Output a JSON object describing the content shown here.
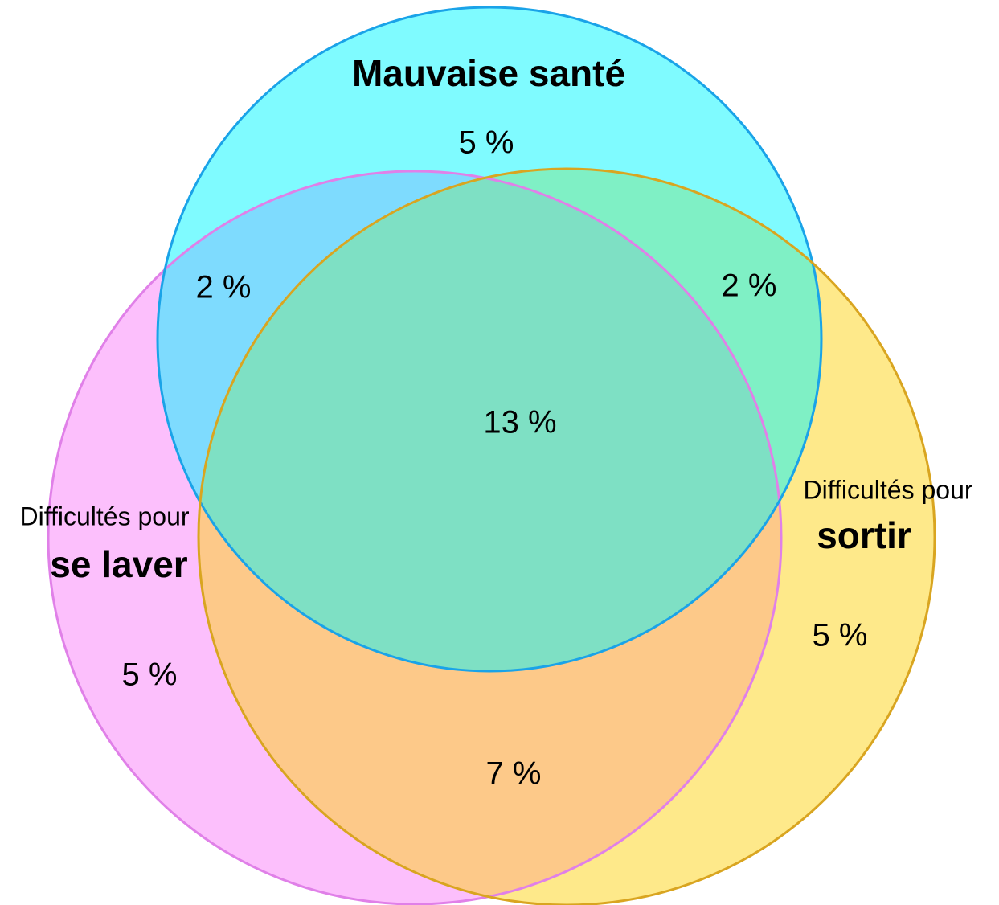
{
  "sets": [
    {
      "name": "Mauvaise santé"
    },
    {
      "prefix": "Difficultés pour",
      "name": "se laver"
    },
    {
      "prefix": "Difficultés pour",
      "name": "sortir"
    }
  ],
  "regions": [
    {
      "label": "5 %"
    },
    {
      "label": "2 %"
    },
    {
      "label": "2 %"
    },
    {
      "label": "13 %"
    },
    {
      "label": "5 %"
    },
    {
      "label": "5 %"
    },
    {
      "label": "7 %"
    }
  ]
}
